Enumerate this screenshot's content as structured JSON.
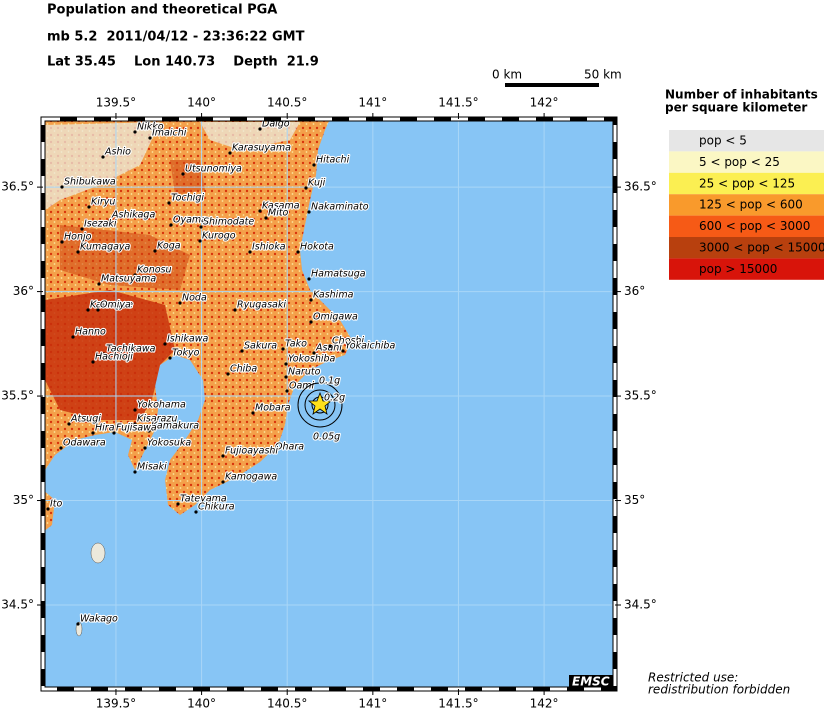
{
  "header": {
    "title": "Population and theoretical PGA",
    "event": "mb 5.2  2011/04/12 - 23:36:22 GMT",
    "location": "Lat 35.45    Lon 140.73    Depth  21.9"
  },
  "scale_bar": {
    "start_label": "0 km",
    "end_label": "50 km"
  },
  "map": {
    "xlim": [
      139.074,
      142.414
    ],
    "ylim": [
      34.098,
      36.826
    ],
    "lon_ticks": [
      {
        "value": 139.5,
        "label": "139.5°"
      },
      {
        "value": 140,
        "label": "140°"
      },
      {
        "value": 140.5,
        "label": "140.5°"
      },
      {
        "value": 141,
        "label": "141°"
      },
      {
        "value": 141.5,
        "label": "141.5°"
      },
      {
        "value": 142,
        "label": "142°"
      }
    ],
    "lat_ticks": [
      {
        "value": 34.5,
        "label": "34.5°"
      },
      {
        "value": 35,
        "label": "35°"
      },
      {
        "value": 35.5,
        "label": "35.5°"
      },
      {
        "value": 36,
        "label": "36°"
      },
      {
        "value": 36.5,
        "label": "36.5°"
      }
    ],
    "cities": [
      "Nikko",
      "Imaichi",
      "Daigo",
      "Ashio",
      "Karasuyama",
      "Hitachi",
      "Utsunomiya",
      "Kuji",
      "Shibukawa",
      "Tochigi",
      "Kiryu",
      "Kasama",
      "Mito",
      "Nakaminato",
      "Ashikaga",
      "Oyama",
      "Shimodate",
      "Isezaki",
      "Kurogo",
      "Honjo",
      "Kumagaya",
      "Koga",
      "Ishioka",
      "Hokota",
      "Konosu",
      "Hamatsuga",
      "Matsuyama",
      "Kashima",
      "Kawagoe",
      "Omiya",
      "Noda",
      "Ryugasaki",
      "Omigawa",
      "Hanno",
      "Ishikawa",
      "Tachikawa",
      "Hachioji",
      "Tokyo",
      "Sakura",
      "Tako",
      "Asahi",
      "Choshi",
      "Yokaichiba",
      "Yokoshiba",
      "Chiba",
      "Naruto",
      "Oami",
      "Yokohama",
      "Mobara",
      "Atsugi",
      "Kisarazu",
      "Kamakura",
      "Hira",
      "Fujisawa",
      "Odawara",
      "Yokosuka",
      "Ohara",
      "Fujioayashi",
      "Misaki",
      "Kamogawa",
      "Tateyama",
      "Chikura",
      "Ito",
      "Wakago"
    ],
    "pga_labels": [
      "0.2g",
      "0.1g",
      "0.05g"
    ],
    "credit": "EMSC"
  },
  "legend": {
    "title": [
      "Number of inhabitants",
      "per square kilometer"
    ],
    "items": [
      {
        "label": "pop < 5",
        "color": "#e6e6e6"
      },
      {
        "label": "5 < pop < 25",
        "color": "#fbf7c4"
      },
      {
        "label": "25 < pop < 125",
        "color": "#fbef52"
      },
      {
        "label": "125 < pop < 600",
        "color": "#f99a2c"
      },
      {
        "label": "600 < pop < 3000",
        "color": "#f65a16"
      },
      {
        "label": "3000 < pop < 15000",
        "color": "#b8400e"
      },
      {
        "label": "pop > 15000",
        "color": "#d8140a"
      }
    ]
  },
  "notice": [
    "Restricted use:",
    "redistribution forbidden"
  ]
}
